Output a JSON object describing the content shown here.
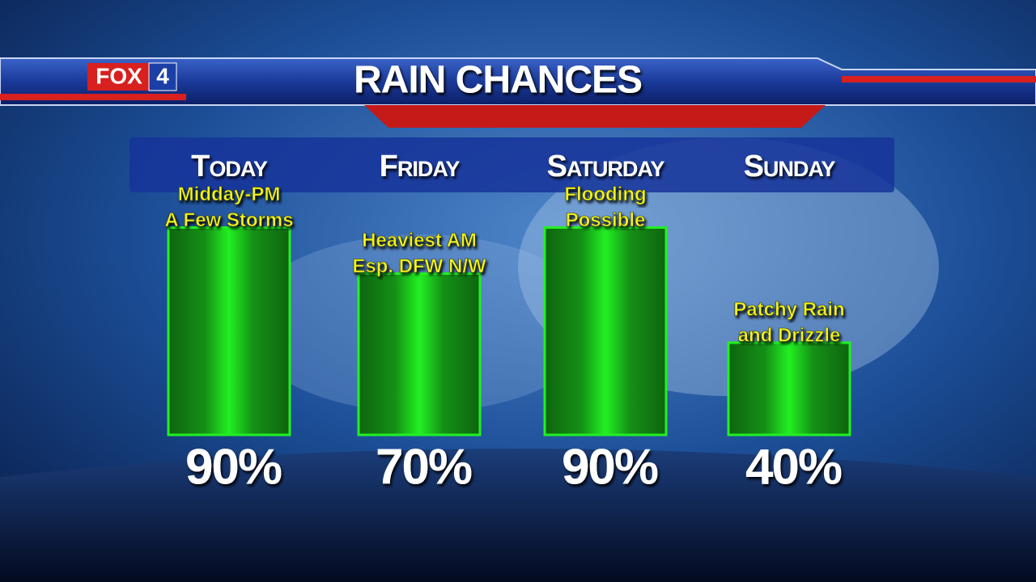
{
  "chart_data": {
    "type": "bar",
    "title": "RAIN CHANCES",
    "brand": "FOX",
    "channel": "4",
    "categories": [
      "Today",
      "Friday",
      "Saturday",
      "Sunday"
    ],
    "values": [
      90,
      70,
      90,
      40
    ],
    "value_labels": [
      "90%",
      "70%",
      "90%",
      "40%"
    ],
    "annotations": [
      [
        "Midday-PM",
        "A Few Storms"
      ],
      [
        "Heaviest AM",
        "Esp. DFW N/W"
      ],
      [
        "Flooding",
        "Possible"
      ],
      [
        "Patchy Rain",
        "and Drizzle"
      ]
    ],
    "color": "#22f022"
  }
}
